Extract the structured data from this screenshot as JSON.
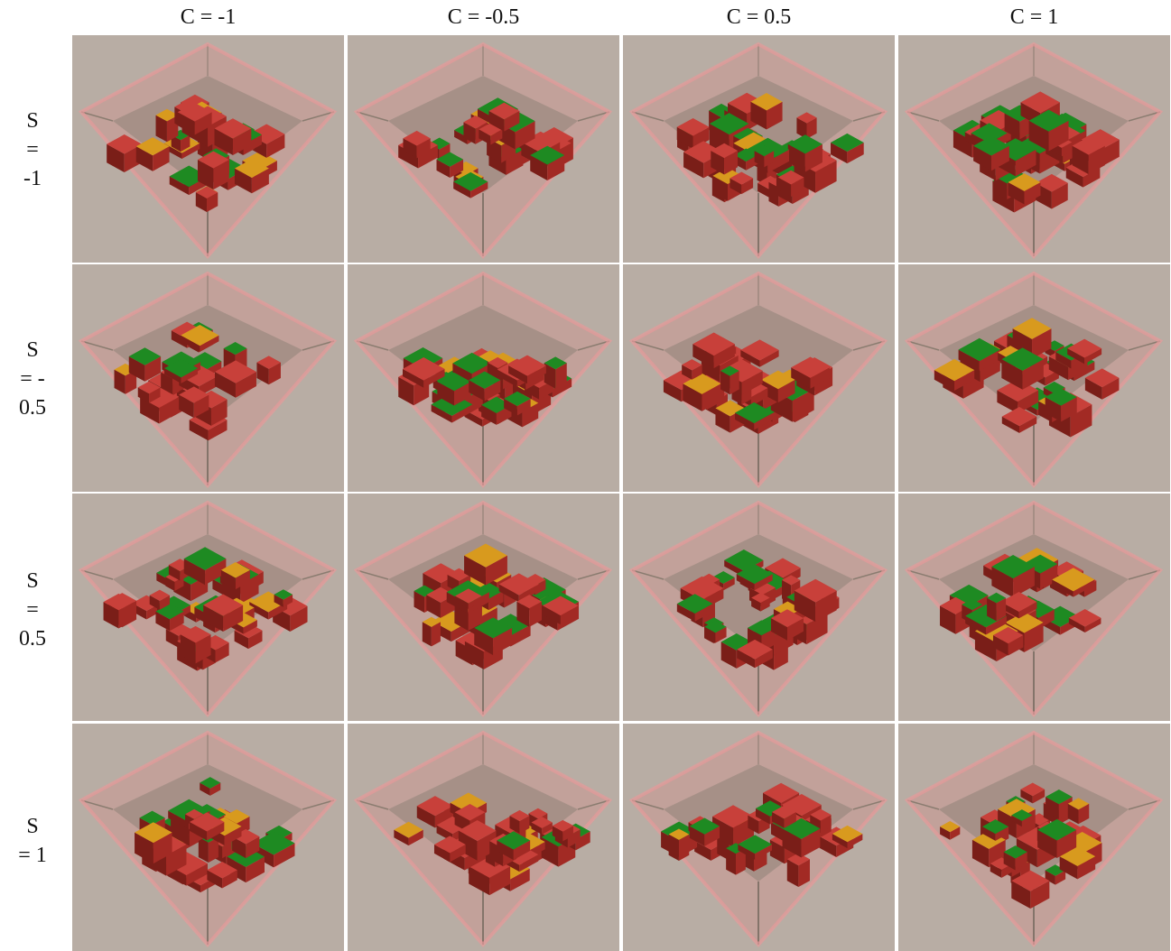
{
  "columns": [
    {
      "label": "C = -1"
    },
    {
      "label": "C = -0.5"
    },
    {
      "label": "C = 0.5"
    },
    {
      "label": "C = 1"
    }
  ],
  "rows": [
    {
      "label_lines": [
        "S",
        "=",
        "-1"
      ]
    },
    {
      "label_lines": [
        "S",
        "= -",
        "0.5"
      ]
    },
    {
      "label_lines": [
        "S",
        "=",
        "0.5"
      ]
    },
    {
      "label_lines": [
        "S",
        "= 1"
      ]
    }
  ],
  "colors": {
    "background": "#b8ada4",
    "wall": "#e08080",
    "floor": "#908478",
    "red_block": "#c8403a",
    "green_block": "#1e8a22",
    "ramp": "#d89a1e"
  }
}
